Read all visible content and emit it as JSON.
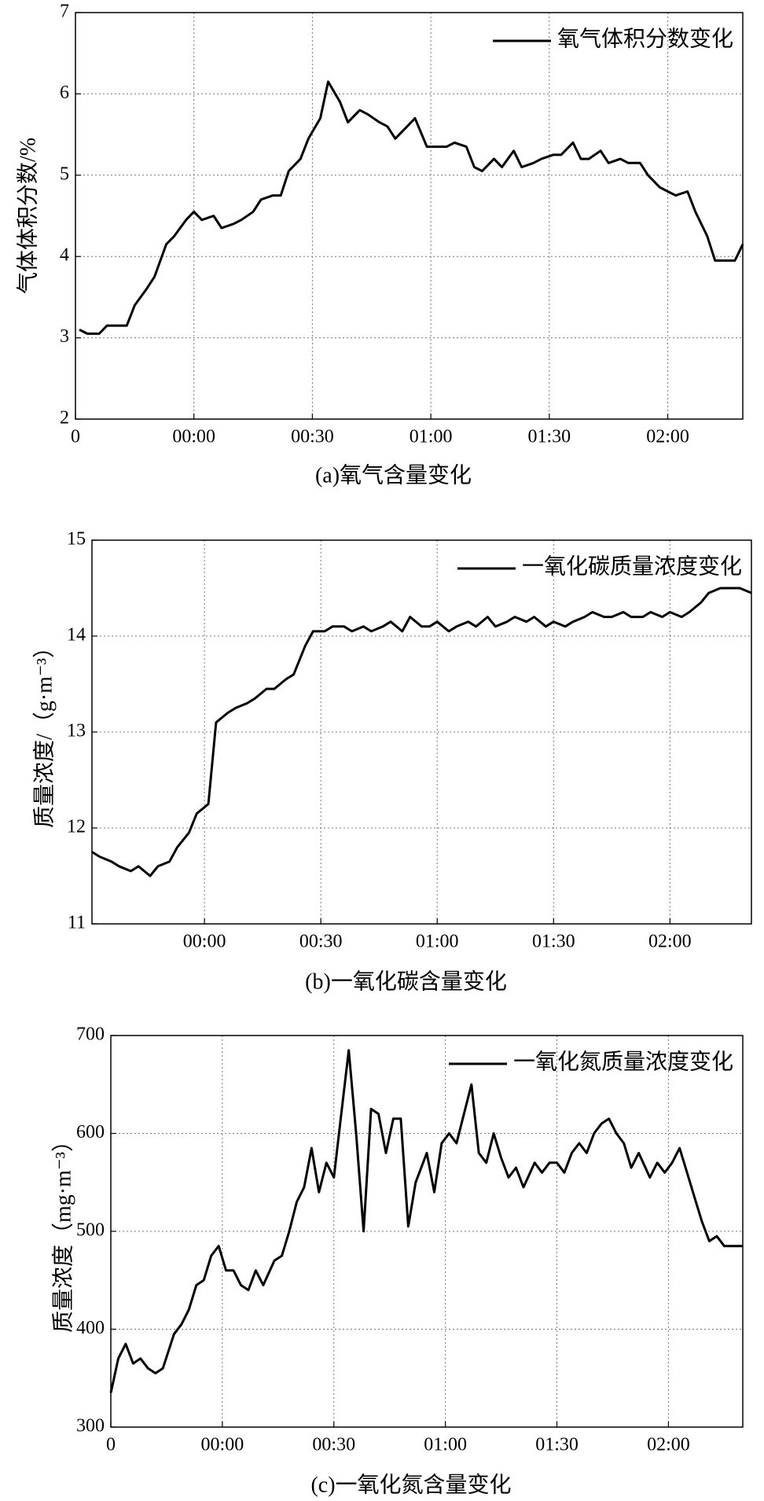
{
  "chart_data": [
    {
      "type": "line",
      "caption": "(a)氧气含量变化",
      "ylabel": "气体体积分数/%",
      "legend": "upper right",
      "grid": true,
      "x": [
        -29,
        -27,
        -24,
        -22,
        -20,
        -17,
        -15,
        -12,
        -10,
        -7,
        -5,
        -2,
        0,
        2,
        5,
        7,
        10,
        12,
        15,
        17,
        20,
        22,
        24,
        27,
        29,
        32,
        34,
        37,
        39,
        42,
        44,
        47,
        49,
        51,
        54,
        56,
        59,
        61,
        64,
        66,
        69,
        71,
        73,
        76,
        78,
        81,
        83,
        86,
        88,
        91,
        93,
        96,
        98,
        100,
        103,
        105,
        108,
        110,
        113,
        115,
        118,
        120,
        122,
        125,
        127,
        130,
        132,
        135,
        137,
        139
      ],
      "series": [
        {
          "name": "氧气体积分数变化",
          "color": "#000000",
          "values": [
            3.1,
            3.05,
            3.05,
            3.15,
            3.15,
            3.15,
            3.4,
            3.6,
            3.75,
            4.15,
            4.25,
            4.45,
            4.55,
            4.45,
            4.5,
            4.35,
            4.4,
            4.45,
            4.55,
            4.7,
            4.75,
            4.75,
            5.05,
            5.2,
            5.45,
            5.7,
            6.15,
            5.9,
            5.65,
            5.8,
            5.75,
            5.65,
            5.6,
            5.45,
            5.6,
            5.7,
            5.35,
            5.35,
            5.35,
            5.4,
            5.35,
            5.1,
            5.05,
            5.2,
            5.1,
            5.3,
            5.1,
            5.15,
            5.2,
            5.25,
            5.25,
            5.4,
            5.2,
            5.2,
            5.3,
            5.15,
            5.2,
            5.15,
            5.15,
            5.0,
            4.85,
            4.8,
            4.75,
            4.8,
            4.55,
            4.25,
            3.95,
            3.95,
            3.95,
            4.15
          ]
        }
      ],
      "xlim": [
        -30,
        139
      ],
      "xticks": [
        {
          "value": -30,
          "label": "0"
        },
        {
          "value": 0,
          "label": "00:00"
        },
        {
          "value": 30,
          "label": "00:30"
        },
        {
          "value": 60,
          "label": "01:00"
        },
        {
          "value": 90,
          "label": "01:30"
        },
        {
          "value": 120,
          "label": "02:00"
        }
      ],
      "ylim": [
        2,
        7
      ],
      "yticks": [
        2,
        3,
        4,
        5,
        6,
        7
      ]
    },
    {
      "type": "line",
      "caption": "(b)一氧化碳含量变化",
      "ylabel": "质量浓度/（g·m⁻³）",
      "legend": "upper right",
      "grid": true,
      "x": [
        -29,
        -27,
        -24,
        -22,
        -19,
        -17,
        -14,
        -12,
        -9,
        -7,
        -4,
        -2,
        1,
        3,
        6,
        8,
        11,
        13,
        16,
        18,
        21,
        23,
        26,
        28,
        31,
        33,
        36,
        38,
        41,
        43,
        46,
        48,
        51,
        53,
        56,
        58,
        60,
        63,
        65,
        68,
        70,
        73,
        75,
        78,
        80,
        83,
        85,
        88,
        90,
        93,
        95,
        98,
        100,
        103,
        105,
        108,
        110,
        113,
        115,
        118,
        120,
        123,
        125,
        128,
        130,
        133,
        135,
        138,
        141
      ],
      "series": [
        {
          "name": "一氧化碳质量浓度变化",
          "color": "#000000",
          "values": [
            11.75,
            11.7,
            11.65,
            11.6,
            11.55,
            11.6,
            11.5,
            11.6,
            11.65,
            11.8,
            11.95,
            12.15,
            12.25,
            13.1,
            13.2,
            13.25,
            13.3,
            13.35,
            13.45,
            13.45,
            13.55,
            13.6,
            13.9,
            14.05,
            14.05,
            14.1,
            14.1,
            14.05,
            14.1,
            14.05,
            14.1,
            14.15,
            14.05,
            14.2,
            14.1,
            14.1,
            14.15,
            14.05,
            14.1,
            14.15,
            14.1,
            14.2,
            14.1,
            14.15,
            14.2,
            14.15,
            14.2,
            14.1,
            14.15,
            14.1,
            14.15,
            14.2,
            14.25,
            14.2,
            14.2,
            14.25,
            14.2,
            14.2,
            14.25,
            14.2,
            14.25,
            14.2,
            14.25,
            14.35,
            14.45,
            14.5,
            14.5,
            14.5,
            14.45
          ]
        }
      ],
      "xlim": [
        -29,
        141
      ],
      "xticks": [
        {
          "value": 0,
          "label": "00:00"
        },
        {
          "value": 30,
          "label": "00:30"
        },
        {
          "value": 60,
          "label": "01:00"
        },
        {
          "value": 90,
          "label": "01:30"
        },
        {
          "value": 120,
          "label": "02:00"
        }
      ],
      "ylim": [
        11,
        15
      ],
      "yticks": [
        11,
        12,
        13,
        14,
        15
      ]
    },
    {
      "type": "line",
      "caption": "(c)一氧化氮含量变化",
      "ylabel": "质量浓度（mg·m⁻³）",
      "legend": "upper right",
      "grid": true,
      "x": [
        -30,
        -28,
        -26,
        -24,
        -22,
        -20,
        -18,
        -16,
        -13,
        -11,
        -9,
        -7,
        -5,
        -3,
        -1,
        1,
        3,
        5,
        7,
        9,
        11,
        14,
        16,
        18,
        20,
        22,
        24,
        26,
        28,
        30,
        32,
        34,
        36,
        38,
        40,
        42,
        44,
        46,
        48,
        50,
        52,
        55,
        57,
        59,
        61,
        63,
        65,
        67,
        69,
        71,
        73,
        75,
        77,
        79,
        81,
        84,
        86,
        88,
        90,
        92,
        94,
        96,
        98,
        100,
        102,
        104,
        106,
        108,
        110,
        112,
        115,
        117,
        119,
        121,
        123,
        125,
        127,
        129,
        131,
        133,
        135,
        140
      ],
      "series": [
        {
          "name": "一氧化氮质量浓度变化",
          "color": "#000000",
          "values": [
            335,
            370,
            385,
            365,
            370,
            360,
            355,
            360,
            395,
            405,
            420,
            445,
            450,
            475,
            485,
            460,
            460,
            445,
            440,
            460,
            445,
            470,
            475,
            500,
            530,
            545,
            585,
            540,
            570,
            555,
            620,
            685,
            600,
            500,
            625,
            620,
            580,
            615,
            615,
            505,
            550,
            580,
            540,
            590,
            600,
            590,
            620,
            650,
            580,
            570,
            600,
            575,
            555,
            565,
            545,
            570,
            560,
            570,
            570,
            560,
            580,
            590,
            580,
            600,
            610,
            615,
            600,
            590,
            565,
            580,
            555,
            570,
            560,
            570,
            585,
            560,
            535,
            510,
            490,
            495,
            485,
            485
          ]
        }
      ],
      "xlim": [
        -30,
        140
      ],
      "xticks": [
        {
          "value": -30,
          "label": "0"
        },
        {
          "value": 0,
          "label": "00:00"
        },
        {
          "value": 30,
          "label": "00:30"
        },
        {
          "value": 60,
          "label": "01:00"
        },
        {
          "value": 90,
          "label": "01:30"
        },
        {
          "value": 120,
          "label": "02:00"
        }
      ],
      "ylim": [
        300,
        700
      ],
      "yticks": [
        300,
        400,
        500,
        600,
        700
      ]
    }
  ]
}
